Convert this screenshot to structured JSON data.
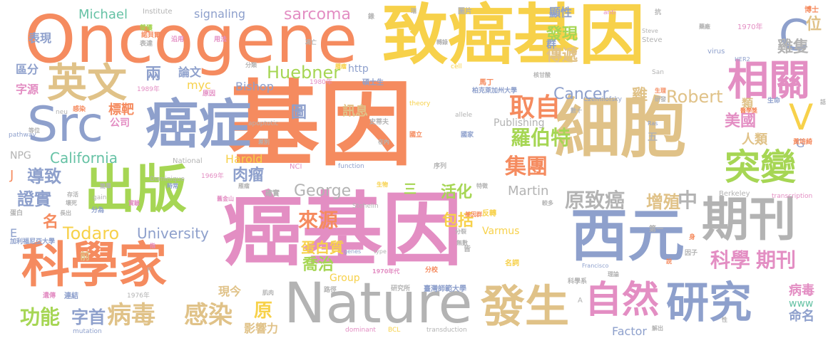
{
  "palette": {
    "orange": "#f58b5f",
    "yellow": "#f7d14a",
    "tan": "#e0c288",
    "blue": "#8ea0cc",
    "pink": "#e38ec3",
    "green": "#a6d654",
    "gray": "#b3b3b3",
    "teal": "#66c2a5"
  },
  "words": [
    {
      "text": "基因",
      "color": "orange"
    },
    {
      "text": "癌基因",
      "color": "pink"
    },
    {
      "text": "Oncogene",
      "color": "orange"
    },
    {
      "text": "致癌基因",
      "color": "yellow"
    },
    {
      "text": "細胞",
      "color": "tan"
    },
    {
      "text": "Nature",
      "color": "gray"
    },
    {
      "text": "西元",
      "color": "blue"
    },
    {
      "text": "癌症",
      "color": "blue"
    },
    {
      "text": "Src",
      "color": "blue"
    },
    {
      "text": "出版",
      "color": "green"
    },
    {
      "text": "科學家",
      "color": "orange"
    },
    {
      "text": "期刊",
      "color": "gray"
    },
    {
      "text": "研究",
      "color": "blue"
    },
    {
      "text": "發生",
      "color": "tan"
    },
    {
      "text": "自然",
      "color": "pink"
    },
    {
      "text": "英文",
      "color": "tan"
    },
    {
      "text": "相關",
      "color": "pink"
    },
    {
      "text": "突變",
      "color": "green"
    },
    {
      "text": "C",
      "color": "blue"
    },
    {
      "text": "V",
      "color": "yellow"
    },
    {
      "text": "病毒",
      "color": "tan"
    },
    {
      "text": "感染",
      "color": "tan"
    },
    {
      "text": "功能",
      "color": "green"
    },
    {
      "text": "字首",
      "color": "blue"
    },
    {
      "text": "原",
      "color": "yellow"
    },
    {
      "text": "科學",
      "color": "pink"
    },
    {
      "text": "期刊",
      "color": "pink"
    },
    {
      "text": "原致癌",
      "color": "gray"
    },
    {
      "text": "增殖",
      "color": "tan"
    },
    {
      "text": "中",
      "color": "gray"
    },
    {
      "text": "取自",
      "color": "orange"
    },
    {
      "text": "羅伯特",
      "color": "green"
    },
    {
      "text": "集團",
      "color": "orange"
    },
    {
      "text": "Cancer",
      "color": "blue"
    },
    {
      "text": "Robert",
      "color": "tan"
    },
    {
      "text": "美國",
      "color": "pink"
    },
    {
      "text": "人類",
      "color": "tan"
    },
    {
      "text": "Huebner",
      "color": "green"
    },
    {
      "text": "sarcoma",
      "color": "pink"
    },
    {
      "text": "發現",
      "color": "green"
    },
    {
      "text": "傳遞",
      "color": "tan"
    },
    {
      "text": "顯性",
      "color": "blue"
    },
    {
      "text": "群",
      "color": "blue"
    },
    {
      "text": "雞隻",
      "color": "gray"
    },
    {
      "text": "位",
      "color": "tan"
    },
    {
      "text": "George",
      "color": "gray"
    },
    {
      "text": "Martin",
      "color": "gray"
    },
    {
      "text": "來源",
      "color": "orange"
    },
    {
      "text": "蛋白質",
      "color": "yellow"
    },
    {
      "text": "喬治",
      "color": "green"
    },
    {
      "text": "包括",
      "color": "yellow"
    },
    {
      "text": "活化",
      "color": "green"
    },
    {
      "text": "三",
      "color": "green"
    },
    {
      "text": "California",
      "color": "teal"
    },
    {
      "text": "University",
      "color": "blue"
    },
    {
      "text": "Todaro",
      "color": "yellow"
    },
    {
      "text": "導致",
      "color": "blue"
    },
    {
      "text": "證實",
      "color": "blue"
    },
    {
      "text": "名",
      "color": "orange"
    },
    {
      "text": "肉瘤",
      "color": "blue"
    },
    {
      "text": "圖",
      "color": "blue"
    },
    {
      "text": "訊息",
      "color": "tan"
    },
    {
      "text": "Publishing",
      "color": "gray"
    },
    {
      "text": "Bishop",
      "color": "blue"
    },
    {
      "text": "Harold",
      "color": "yellow"
    },
    {
      "text": "myc",
      "color": "yellow"
    },
    {
      "text": "論文",
      "color": "blue"
    },
    {
      "text": "兩",
      "color": "blue"
    },
    {
      "text": "標靶",
      "color": "orange"
    },
    {
      "text": "公司",
      "color": "pink"
    },
    {
      "text": "Michael",
      "color": "teal"
    },
    {
      "text": "signaling",
      "color": "blue"
    },
    {
      "text": "表現",
      "color": "blue"
    },
    {
      "text": "區分",
      "color": "blue"
    },
    {
      "text": "字源",
      "color": "pink"
    },
    {
      "text": "Varmus",
      "color": "yellow"
    },
    {
      "text": "Group",
      "color": "yellow"
    },
    {
      "text": "Factor",
      "color": "blue"
    },
    {
      "text": "現今",
      "color": "tan"
    },
    {
      "text": "影響力",
      "color": "tan"
    },
    {
      "text": "病毒",
      "color": "pink"
    },
    {
      "text": "命名",
      "color": "blue"
    },
    {
      "text": "www",
      "color": "teal"
    },
    {
      "text": "G",
      "color": "blue"
    },
    {
      "text": "雞",
      "color": "tan"
    },
    {
      "text": "類",
      "color": "tan"
    },
    {
      "text": "五",
      "color": "gray"
    },
    {
      "text": "http",
      "color": "blue"
    },
    {
      "text": "前",
      "color": "tan"
    },
    {
      "text": "E",
      "color": "blue"
    },
    {
      "text": "J",
      "color": "orange"
    },
    {
      "text": "NPG",
      "color": "gray"
    },
    {
      "text": "Institute",
      "color": "gray"
    },
    {
      "text": "1970年",
      "color": "pink"
    },
    {
      "text": "博士",
      "color": "orange"
    },
    {
      "text": "anti",
      "color": "pink"
    },
    {
      "text": "virus",
      "color": "blue"
    },
    {
      "text": "HER2",
      "color": "blue"
    },
    {
      "text": "Steve",
      "color": "gray"
    },
    {
      "text": "San",
      "color": "gray"
    },
    {
      "text": "Czemilofsky",
      "color": "blue"
    },
    {
      "text": "Ras",
      "color": "blue"
    },
    {
      "text": "黃培綺",
      "color": "orange"
    },
    {
      "text": "醫學獎",
      "color": "orange"
    },
    {
      "text": "生物",
      "color": "yellow"
    },
    {
      "text": "第一",
      "color": "gray"
    },
    {
      "text": "因子",
      "color": "gray"
    },
    {
      "text": "Francisco",
      "color": "blue"
    },
    {
      "text": "Berkeley",
      "color": "gray"
    },
    {
      "text": "transcription",
      "color": "pink"
    },
    {
      "text": "科學系",
      "color": "gray"
    },
    {
      "text": "theory",
      "color": "yellow"
    },
    {
      "text": "allele",
      "color": "gray"
    },
    {
      "text": "馬丁",
      "color": "orange"
    },
    {
      "text": "柏克萊加州大學",
      "color": "blue"
    },
    {
      "text": "史蒂夫",
      "color": "gray"
    },
    {
      "text": "國家",
      "color": "blue"
    },
    {
      "text": "國立",
      "color": "orange"
    },
    {
      "text": "序列",
      "color": "gray"
    },
    {
      "text": "function",
      "color": "blue"
    },
    {
      "text": "NCI",
      "color": "pink"
    },
    {
      "text": "apoptotic",
      "color": "gray"
    },
    {
      "text": "National",
      "color": "gray"
    },
    {
      "text": "1969年",
      "color": "pink"
    },
    {
      "text": "Stehelin",
      "color": "gray"
    },
    {
      "text": "研究所",
      "color": "gray"
    },
    {
      "text": "臺灣師範大學",
      "color": "blue"
    },
    {
      "text": "dominant",
      "color": "pink"
    },
    {
      "text": "BCL",
      "color": "yellow"
    },
    {
      "text": "transduction",
      "color": "gray"
    },
    {
      "text": "mutation",
      "color": "blue"
    },
    {
      "text": "1976年",
      "color": "gray"
    },
    {
      "text": "連結",
      "color": "blue"
    },
    {
      "text": "遺傳",
      "color": "pink"
    },
    {
      "text": "加利福尼亞大學",
      "color": "blue"
    },
    {
      "text": "肌肉",
      "color": "gray"
    },
    {
      "text": "路徑",
      "color": "gray"
    },
    {
      "text": "pathway",
      "color": "blue"
    },
    {
      "text": "gain",
      "color": "gray"
    },
    {
      "text": "genes",
      "color": "blue"
    },
    {
      "text": "type",
      "color": "gray"
    },
    {
      "text": "cell",
      "color": "yellow"
    },
    {
      "text": "1980年",
      "color": "pink"
    },
    {
      "text": "碩士生",
      "color": "blue"
    },
    {
      "text": "1989年",
      "color": "pink"
    },
    {
      "text": "原因",
      "color": "pink"
    },
    {
      "text": "分類",
      "color": "gray"
    },
    {
      "text": "用法",
      "color": "pink"
    },
    {
      "text": "沿用",
      "color": "pink"
    },
    {
      "text": "圖片",
      "color": "gray"
    },
    {
      "text": "錄",
      "color": "gray"
    },
    {
      "text": "抗",
      "color": "gray"
    },
    {
      "text": "藥廠",
      "color": "gray"
    },
    {
      "text": "生理",
      "color": "orange"
    },
    {
      "text": "生命",
      "color": "blue"
    },
    {
      "text": "研發",
      "color": "gray"
    },
    {
      "text": "在內",
      "color": "gray"
    },
    {
      "text": "差別",
      "color": "gray"
    },
    {
      "text": "特徵",
      "color": "gray"
    },
    {
      "text": "反轉",
      "color": "yellow"
    },
    {
      "text": "基因群",
      "color": "orange"
    },
    {
      "text": "1970年代",
      "color": "pink"
    },
    {
      "text": "分校",
      "color": "orange"
    },
    {
      "text": "名詞",
      "color": "yellow"
    },
    {
      "text": "身",
      "color": "orange"
    },
    {
      "text": "說",
      "color": "orange"
    },
    {
      "text": "理論",
      "color": "gray"
    },
    {
      "text": "較多",
      "color": "gray"
    },
    {
      "text": "舊金山",
      "color": "pink"
    },
    {
      "text": "分為",
      "color": "blue"
    },
    {
      "text": "存活",
      "color": "gray"
    },
    {
      "text": "壞死",
      "color": "gray"
    },
    {
      "text": "長出",
      "color": "gray"
    },
    {
      "text": "蛋白",
      "color": "gray"
    },
    {
      "text": "實驗",
      "color": "pink"
    },
    {
      "text": "簡單",
      "color": "gray"
    },
    {
      "text": "時常",
      "color": "blue"
    },
    {
      "text": "指",
      "color": "pink"
    },
    {
      "text": "榮獲",
      "color": "green"
    },
    {
      "text": "諾貝爾",
      "color": "orange"
    },
    {
      "text": "表達",
      "color": "gray"
    },
    {
      "text": "凋亡",
      "color": "gray"
    },
    {
      "text": "轉錄",
      "color": "gray"
    },
    {
      "text": "核甘酸",
      "color": "gray"
    },
    {
      "text": "數十",
      "color": "gray"
    },
    {
      "text": "腫瘤",
      "color": "yellow"
    },
    {
      "text": "Dominique",
      "color": "gray"
    },
    {
      "text": "neu",
      "color": "gray"
    },
    {
      "text": "等位",
      "color": "gray"
    },
    {
      "text": "感染",
      "color": "orange"
    },
    {
      "text": "瑞",
      "color": "gray"
    },
    {
      "text": "確實",
      "color": "gray"
    },
    {
      "text": "雁瘤",
      "color": "gray"
    },
    {
      "text": "解出",
      "color": "gray"
    },
    {
      "text": "性",
      "color": "gray"
    },
    {
      "text": "話",
      "color": "gray"
    },
    {
      "text": "無數",
      "color": "gray"
    },
    {
      "text": "分裂",
      "color": "gray"
    },
    {
      "text": "皆",
      "color": "gray"
    },
    {
      "text": "A",
      "color": "gray"
    },
    {
      "text": "P",
      "color": "gray"
    },
    {
      "text": "Steve",
      "color": "gray"
    }
  ]
}
